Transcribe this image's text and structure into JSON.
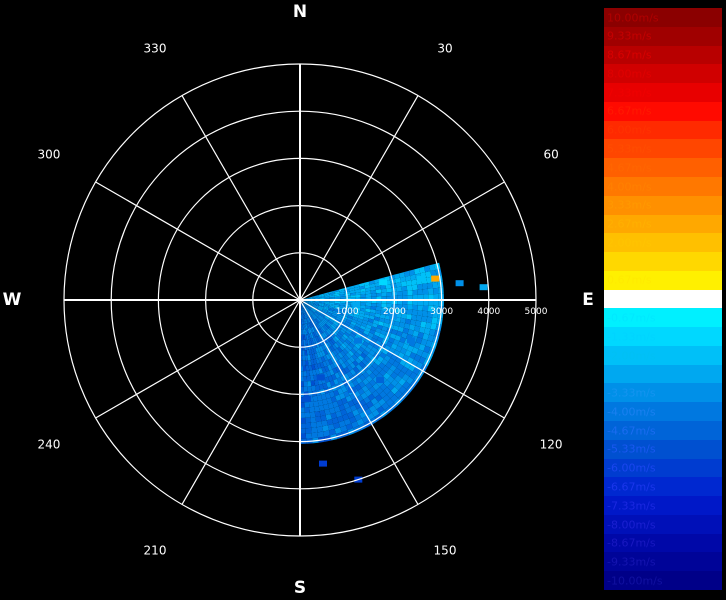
{
  "chart_data": {
    "type": "heatmap",
    "subtype": "polar-radar-ppi",
    "cardinals": [
      {
        "name": "north-label",
        "text": "N",
        "azimuth": 0
      },
      {
        "name": "east-label",
        "text": "E",
        "azimuth": 90
      },
      {
        "name": "south-label",
        "text": "S",
        "azimuth": 180
      },
      {
        "name": "west-label",
        "text": "W",
        "azimuth": 270
      }
    ],
    "azimuth_labels": [
      {
        "text": "30",
        "azimuth": 30
      },
      {
        "text": "60",
        "azimuth": 60
      },
      {
        "text": "120",
        "azimuth": 120
      },
      {
        "text": "150",
        "azimuth": 150
      },
      {
        "text": "210",
        "azimuth": 210
      },
      {
        "text": "240",
        "azimuth": 240
      },
      {
        "text": "300",
        "azimuth": 300
      },
      {
        "text": "330",
        "azimuth": 330
      }
    ],
    "range_rings": [
      1000,
      2000,
      3000,
      4000,
      5000
    ],
    "range_labels": [
      "1000",
      "2000",
      "3000",
      "4000",
      "5000"
    ],
    "max_range": 5000,
    "grid": true,
    "colorbar": {
      "placement": "right",
      "entries": [
        {
          "label": "10.00m/s",
          "color": "#8b0000",
          "text_color": "#b00000"
        },
        {
          "label": "9.33m/s",
          "color": "#a00000",
          "text_color": "#c40000"
        },
        {
          "label": "8.67m/s",
          "color": "#b80000",
          "text_color": "#d80000"
        },
        {
          "label": "8.00m/s",
          "color": "#d00000",
          "text_color": "#e00000"
        },
        {
          "label": "7.33m/s",
          "color": "#e80000",
          "text_color": "#f00000"
        },
        {
          "label": "6.67m/s",
          "color": "#ff0a00",
          "text_color": "#ff1a00"
        },
        {
          "label": "6.00m/s",
          "color": "#ff2a00",
          "text_color": "#ff3300"
        },
        {
          "label": "5.33m/s",
          "color": "#ff4600",
          "text_color": "#ff4d00"
        },
        {
          "label": "4.67m/s",
          "color": "#ff6000",
          "text_color": "#ff6600"
        },
        {
          "label": "4.00m/s",
          "color": "#ff7800",
          "text_color": "#ff8000"
        },
        {
          "label": "3.33m/s",
          "color": "#ff9000",
          "text_color": "#ff9900"
        },
        {
          "label": "2.67m/s",
          "color": "#ffa800",
          "text_color": "#ffb000"
        },
        {
          "label": "2.00m/s",
          "color": "#ffc000",
          "text_color": "#ffc400"
        },
        {
          "label": "1.33m/s",
          "color": "#ffd800",
          "text_color": "#ffd800"
        },
        {
          "label": "0.67m/s",
          "color": "#fff000",
          "text_color": "#ffea00"
        },
        {
          "label": "0.00m/s",
          "color": "#ffffff",
          "text_color": "#ffffff"
        },
        {
          "label": "-0.67m/s",
          "color": "#00f0ff",
          "text_color": "#00e8ff"
        },
        {
          "label": "-1.33m/s",
          "color": "#00d8ff",
          "text_color": "#00d4ff"
        },
        {
          "label": "-2.00m/s",
          "color": "#00c0f8",
          "text_color": "#00c0f4"
        },
        {
          "label": "-2.67m/s",
          "color": "#00a8f0",
          "text_color": "#00a8f0"
        },
        {
          "label": "-3.33m/s",
          "color": "#0090e8",
          "text_color": "#1494f0"
        },
        {
          "label": "-4.00m/s",
          "color": "#0078e0",
          "text_color": "#1a80f0"
        },
        {
          "label": "-4.67m/s",
          "color": "#0064d8",
          "text_color": "#1a6cf0"
        },
        {
          "label": "-5.33m/s",
          "color": "#0050d0",
          "text_color": "#1a58f0"
        },
        {
          "label": "-6.00m/s",
          "color": "#003cd0",
          "text_color": "#1a46ee"
        },
        {
          "label": "-6.67m/s",
          "color": "#0028d0",
          "text_color": "#1a36ea"
        },
        {
          "label": "-7.33m/s",
          "color": "#0018c8",
          "text_color": "#1a28e0"
        },
        {
          "label": "-8.00m/s",
          "color": "#0010b8",
          "text_color": "#1a20d0"
        },
        {
          "label": "-8.67m/s",
          "color": "#0008a8",
          "text_color": "#1818c0"
        },
        {
          "label": "-9.33m/s",
          "color": "#000498",
          "text_color": "#1414b0"
        },
        {
          "label": "-10.00m/s",
          "color": "#000088",
          "text_color": "#1010a0"
        }
      ]
    },
    "sector": {
      "azimuth_start": 75,
      "azimuth_end": 180,
      "range_end": 3000,
      "dominant_velocity_range": [
        -5.33,
        -1.33
      ]
    },
    "echo_samples": [
      {
        "azimuth": 78,
        "range": 1800,
        "velocity": -1.33
      },
      {
        "azimuth": 80,
        "range": 2600,
        "velocity": -2.0
      },
      {
        "azimuth": 81,
        "range": 2900,
        "velocity": 2.67
      },
      {
        "azimuth": 84,
        "range": 3400,
        "velocity": -3.33
      },
      {
        "azimuth": 86,
        "range": 3900,
        "velocity": -2.67
      },
      {
        "azimuth": 95,
        "range": 1200,
        "velocity": -2.67
      },
      {
        "azimuth": 100,
        "range": 2000,
        "velocity": -3.33
      },
      {
        "azimuth": 110,
        "range": 2500,
        "velocity": -4.0
      },
      {
        "azimuth": 125,
        "range": 1500,
        "velocity": -4.0
      },
      {
        "azimuth": 135,
        "range": 2400,
        "velocity": -4.67
      },
      {
        "azimuth": 150,
        "range": 2200,
        "velocity": -4.67
      },
      {
        "azimuth": 165,
        "range": 1700,
        "velocity": -5.33
      },
      {
        "azimuth": 176,
        "range": 2100,
        "velocity": -5.33
      },
      {
        "azimuth": 172,
        "range": 3500,
        "velocity": -6.0
      },
      {
        "azimuth": 162,
        "range": 4000,
        "velocity": -6.0
      }
    ]
  }
}
